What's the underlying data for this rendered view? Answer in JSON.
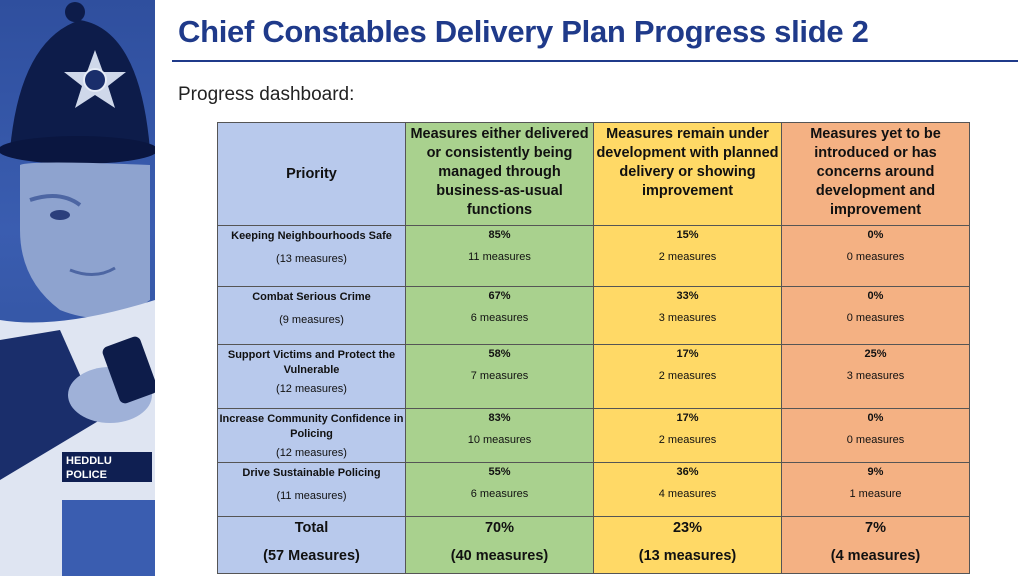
{
  "title": "Chief Constables Delivery Plan Progress slide 2",
  "subtitle": "Progress dashboard:",
  "photo": {
    "badge_text": "HEDDLU POLICE"
  },
  "table": {
    "headers": {
      "priority": "Priority",
      "delivered": "Measures either delivered or consistently being managed through business-as-usual functions",
      "development": "Measures remain under development with planned delivery or showing improvement",
      "concerns": "Measures yet to be introduced or has concerns around development and improvement"
    },
    "rows": [
      {
        "priority": "Keeping Neighbourhoods Safe",
        "measures": "(13 measures)",
        "delivered": {
          "pct": "85%",
          "count": "11 measures"
        },
        "development": {
          "pct": "15%",
          "count": "2 measures"
        },
        "concerns": {
          "pct": "0%",
          "count": "0 measures"
        }
      },
      {
        "priority": "Combat Serious Crime",
        "measures": "(9 measures)",
        "delivered": {
          "pct": "67%",
          "count": "6 measures"
        },
        "development": {
          "pct": "33%",
          "count": "3 measures"
        },
        "concerns": {
          "pct": "0%",
          "count": "0 measures"
        }
      },
      {
        "priority": "Support Victims and Protect the Vulnerable",
        "measures": "(12 measures)",
        "delivered": {
          "pct": "58%",
          "count": "7 measures"
        },
        "development": {
          "pct": "17%",
          "count": "2 measures"
        },
        "concerns": {
          "pct": "25%",
          "count": "3 measures"
        }
      },
      {
        "priority": "Increase Community Confidence in Policing",
        "measures": "(12 measures)",
        "delivered": {
          "pct": "83%",
          "count": "10 measures"
        },
        "development": {
          "pct": "17%",
          "count": "2 measures"
        },
        "concerns": {
          "pct": "0%",
          "count": "0 measures"
        }
      },
      {
        "priority": "Drive Sustainable Policing",
        "measures": "(11 measures)",
        "delivered": {
          "pct": "55%",
          "count": "6 measures"
        },
        "development": {
          "pct": "36%",
          "count": "4 measures"
        },
        "concerns": {
          "pct": "9%",
          "count": "1 measure"
        }
      }
    ],
    "total": {
      "label": "Total",
      "measures": "(57 Measures)",
      "delivered": {
        "pct": "70%",
        "count": "(40 measures)"
      },
      "development": {
        "pct": "23%",
        "count": "(13 measures)"
      },
      "concerns": {
        "pct": "7%",
        "count": "(4 measures)"
      }
    }
  },
  "colors": {
    "title": "#1f3a8a",
    "priority_col": "#b8c9ec",
    "delivered_col": "#a9d18e",
    "development_col": "#ffd966",
    "concerns_col": "#f4b183"
  }
}
